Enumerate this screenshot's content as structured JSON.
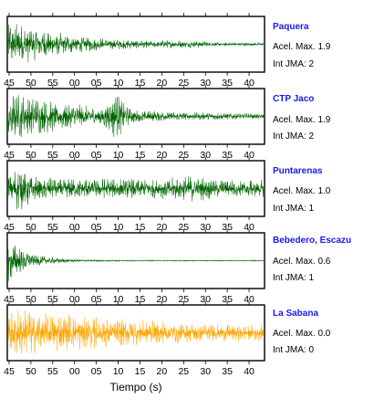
{
  "chart_data": {
    "type": "line",
    "title": "",
    "xlabel": "Tiempo (s)",
    "ylabel": "",
    "x_tick_labels": [
      "45",
      "50",
      "55",
      "00",
      "05",
      "10",
      "15",
      "20",
      "25",
      "30",
      "35",
      "40"
    ],
    "grid": false,
    "panels": [
      {
        "station": "Paquera",
        "acc_label": "Acel. Max. 1.9",
        "int_label": "Int JMA: 2",
        "color": "#006400",
        "shape": "decay"
      },
      {
        "station": "CTP Jaco",
        "acc_label": "Acel. Max. 1.9",
        "int_label": "Int JMA: 2",
        "color": "#006400",
        "shape": "decay-burst-10s"
      },
      {
        "station": "Puntarenas",
        "acc_label": "Acel. Max. 1.0",
        "int_label": "Int JMA: 1",
        "color": "#006400",
        "shape": "sustained-burst-25s"
      },
      {
        "station": "Bebedero, Escazu",
        "acc_label": "Acel. Max. 0.6",
        "int_label": "Int JMA: 1",
        "color": "#006400",
        "shape": "fast-decay"
      },
      {
        "station": "La Sabana",
        "acc_label": "Acel. Max. 0.0",
        "int_label": "Int JMA: 0",
        "color": "#FFA500",
        "shape": "slow-decay"
      }
    ]
  }
}
